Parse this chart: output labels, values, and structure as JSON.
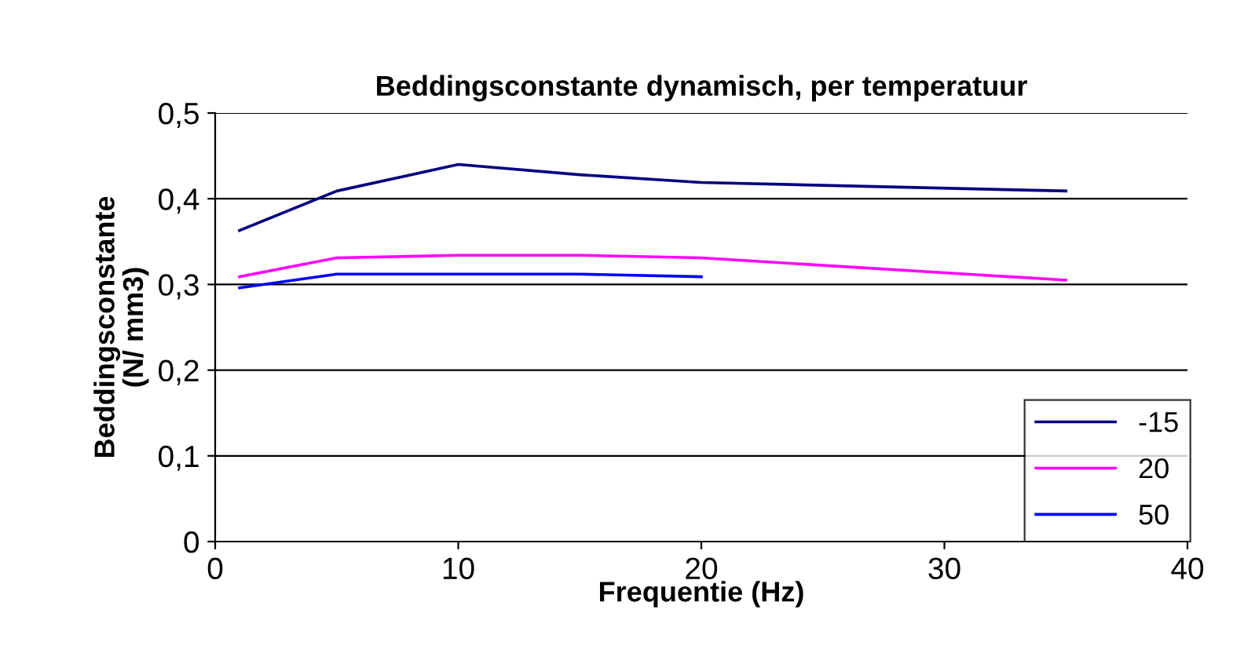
{
  "chart_data": {
    "type": "line",
    "title": "Beddingsconstante dynamisch, per temperatuur",
    "xlabel": "Frequentie (Hz)",
    "ylabel": "Beddingsconstante\n(N/ mm3)",
    "xlim": [
      0,
      40
    ],
    "xticks": [
      0,
      10,
      20,
      30,
      40
    ],
    "ylim": [
      0,
      0.5
    ],
    "yticks": [
      {
        "value": 0,
        "label": "0"
      },
      {
        "value": 0.1,
        "label": "0,1"
      },
      {
        "value": 0.2,
        "label": "0,2"
      },
      {
        "value": 0.3,
        "label": "0,3"
      },
      {
        "value": 0.4,
        "label": "0,4"
      },
      {
        "value": 0.5,
        "label": "0,5"
      }
    ],
    "grid": "y",
    "legend": "bottom right",
    "marker": "none",
    "line_style": "solid",
    "series": [
      {
        "name": "-15",
        "color": "#000080",
        "x": [
          1,
          5,
          10,
          15,
          20,
          35
        ],
        "values": [
          0.363,
          0.409,
          0.44,
          0.428,
          0.419,
          0.409
        ]
      },
      {
        "name": "20",
        "color": "#ff00ff",
        "x": [
          1,
          5,
          10,
          15,
          20,
          35
        ],
        "values": [
          0.309,
          0.331,
          0.334,
          0.334,
          0.331,
          0.305
        ]
      },
      {
        "name": "50",
        "color": "#0000ff",
        "x": [
          1,
          5,
          10,
          15,
          20
        ],
        "values": [
          0.296,
          0.312,
          0.312,
          0.312,
          0.309
        ]
      }
    ]
  }
}
